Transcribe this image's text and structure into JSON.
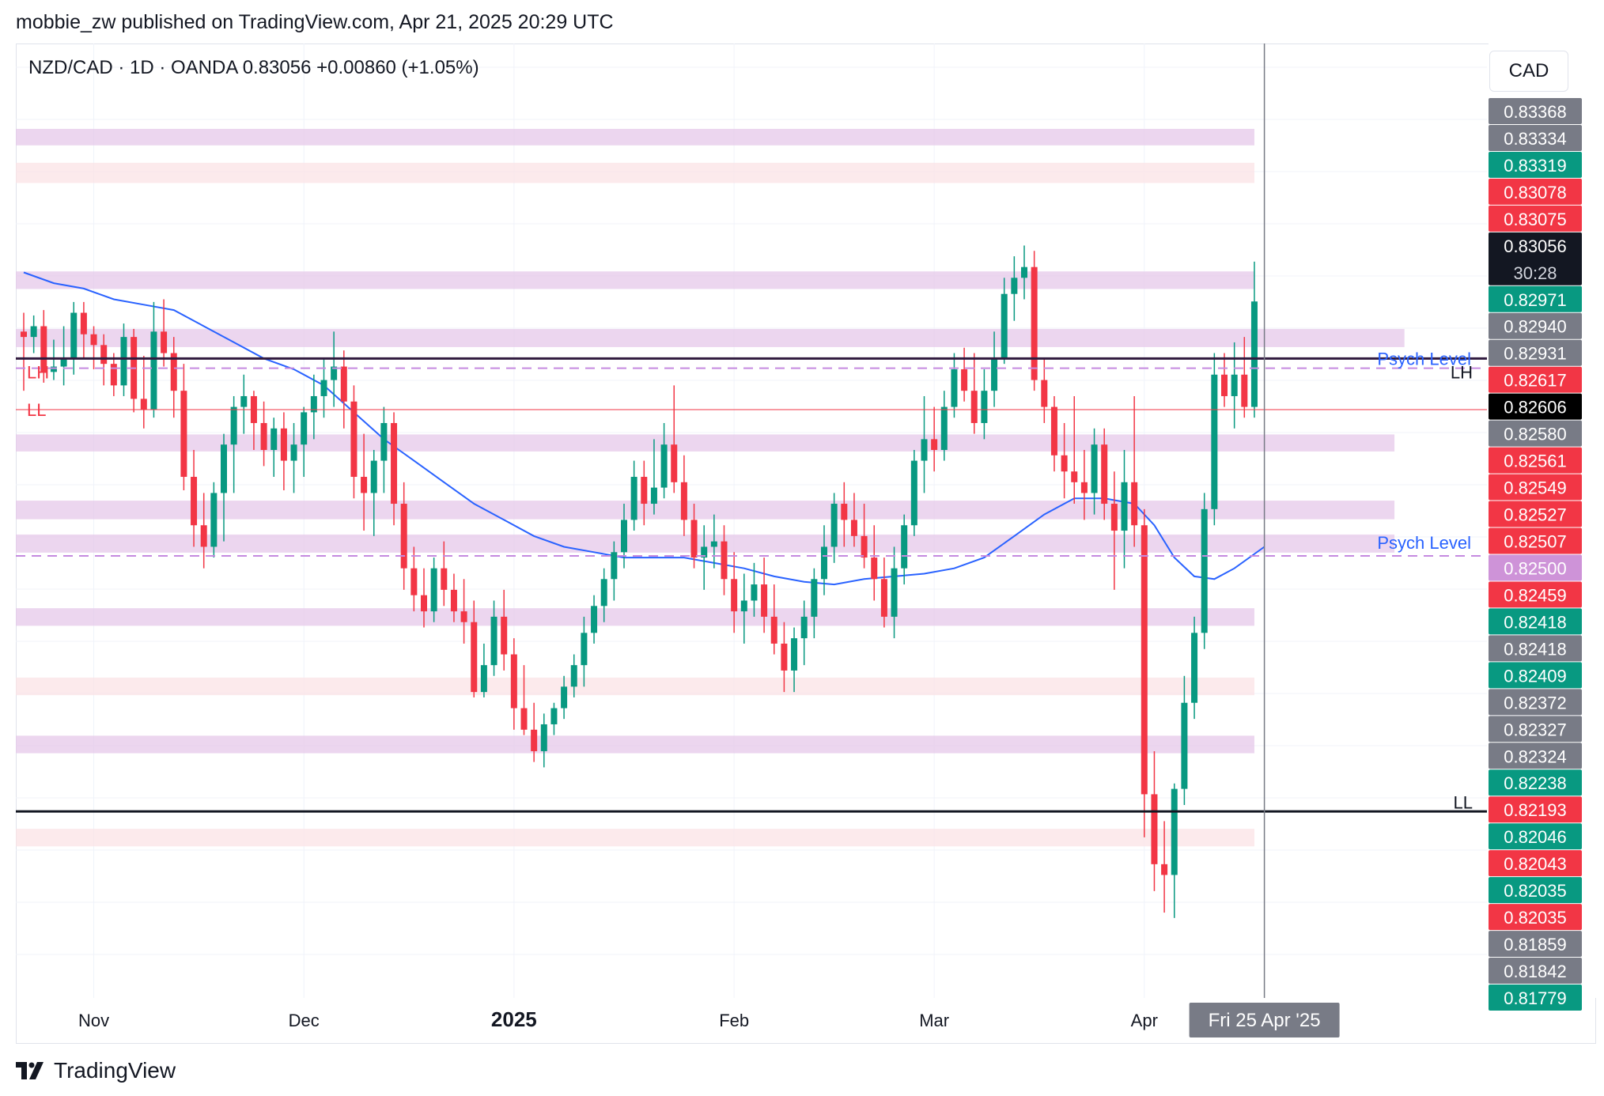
{
  "header": {
    "published_by": "mobbie_zw published on TradingView.com, Apr 21, 2025 20:29 UTC"
  },
  "symbol_line": "NZD/CAD · 1D · OANDA  0.83056  +0.00860 (+1.05%)",
  "currency": "CAD",
  "footer": {
    "brand": "TradingView"
  },
  "colors": {
    "up": "#089981",
    "down": "#f23645",
    "ma": "#2962ff",
    "zone_purple": "#e6c8ea",
    "zone_pink": "#fbe3e6",
    "psych": "#c58ae0",
    "label_blue": "#2962ff"
  },
  "chart_data": {
    "type": "candlestick",
    "title": "NZD/CAD · 1D · OANDA",
    "ylim": [
      0.81779,
      0.83415
    ],
    "x_ticks": [
      {
        "label": "Nov",
        "index": 7
      },
      {
        "label": "Dec",
        "index": 28
      },
      {
        "label": "2025",
        "index": 49
      },
      {
        "label": "Feb",
        "index": 71
      },
      {
        "label": "Mar",
        "index": 91
      },
      {
        "label": "Apr",
        "index": 112
      }
    ],
    "crosshair_date": "Fri 25 Apr '25",
    "countdown": "30:28",
    "last_price": "0.83056",
    "price_labels": [
      {
        "value": "0.83368",
        "kind": "gray"
      },
      {
        "value": "0.83334",
        "kind": "gray"
      },
      {
        "value": "0.83319",
        "kind": "up"
      },
      {
        "value": "0.83078",
        "kind": "down"
      },
      {
        "value": "0.83075",
        "kind": "down"
      },
      {
        "value": "0.83056",
        "kind": "last"
      },
      {
        "value": "0.82971",
        "kind": "up"
      },
      {
        "value": "0.82940",
        "kind": "gray"
      },
      {
        "value": "0.82931",
        "kind": "gray"
      },
      {
        "value": "0.82617",
        "kind": "down"
      },
      {
        "value": "0.82606",
        "kind": "black"
      },
      {
        "value": "0.82580",
        "kind": "gray"
      },
      {
        "value": "0.82561",
        "kind": "down"
      },
      {
        "value": "0.82549",
        "kind": "down"
      },
      {
        "value": "0.82527",
        "kind": "down"
      },
      {
        "value": "0.82507",
        "kind": "down"
      },
      {
        "value": "0.82500",
        "kind": "purple"
      },
      {
        "value": "0.82459",
        "kind": "down"
      },
      {
        "value": "0.82418",
        "kind": "up"
      },
      {
        "value": "0.82418",
        "kind": "gray"
      },
      {
        "value": "0.82409",
        "kind": "up"
      },
      {
        "value": "0.82372",
        "kind": "gray"
      },
      {
        "value": "0.82327",
        "kind": "gray"
      },
      {
        "value": "0.82324",
        "kind": "gray"
      },
      {
        "value": "0.82238",
        "kind": "up"
      },
      {
        "value": "0.82193",
        "kind": "down"
      },
      {
        "value": "0.82046",
        "kind": "up"
      },
      {
        "value": "0.82043",
        "kind": "down"
      },
      {
        "value": "0.82035",
        "kind": "up"
      },
      {
        "value": "0.82035",
        "kind": "down"
      },
      {
        "value": "0.81859",
        "kind": "gray"
      },
      {
        "value": "0.81842",
        "kind": "gray"
      },
      {
        "value": "0.81779",
        "kind": "up"
      }
    ],
    "zones": [
      {
        "low": 0.83355,
        "high": 0.83368,
        "color": "purple",
        "end_index": 123
      },
      {
        "low": 0.83285,
        "high": 0.83305,
        "color": "pink",
        "end_index": 123
      },
      {
        "low": 0.83088,
        "high": 0.83103,
        "color": "purple",
        "end_index": 123
      },
      {
        "low": 0.8298,
        "high": 0.82996,
        "color": "purple",
        "end_index": 138
      },
      {
        "low": 0.82786,
        "high": 0.828,
        "color": "purple",
        "end_index": 137
      },
      {
        "low": 0.8266,
        "high": 0.82677,
        "color": "purple",
        "end_index": 137
      },
      {
        "low": 0.82598,
        "high": 0.82614,
        "color": "purple",
        "end_index": 137
      },
      {
        "low": 0.82462,
        "high": 0.82477,
        "color": "purple",
        "end_index": 123
      },
      {
        "low": 0.82333,
        "high": 0.82348,
        "color": "pink",
        "end_index": 123
      },
      {
        "low": 0.82225,
        "high": 0.8224,
        "color": "purple",
        "end_index": 123
      },
      {
        "low": 0.82052,
        "high": 0.82067,
        "color": "pink",
        "end_index": 123
      }
    ],
    "horizontal_lines": [
      {
        "name": "resistance",
        "value": 0.8295,
        "color": "#311b3f",
        "width": 3,
        "style": "solid"
      },
      {
        "name": "psych-upper",
        "value": 0.82932,
        "color": "#c58ae0",
        "width": 2,
        "style": "dashed"
      },
      {
        "name": "red-level",
        "value": 0.82855,
        "color": "#f23645",
        "width": 1,
        "style": "solid"
      },
      {
        "name": "psych-lower",
        "value": 0.82583,
        "color": "#c58ae0",
        "width": 2,
        "style": "dashed"
      },
      {
        "name": "ll-line",
        "value": 0.82108,
        "color": "#131722",
        "width": 3,
        "style": "solid"
      }
    ],
    "annotations": [
      {
        "text": "Psych Level",
        "value": 0.8295,
        "color": "#2962ff"
      },
      {
        "text": "Psych Level",
        "value": 0.82608,
        "color": "#2962ff"
      },
      {
        "text": "LH",
        "value": 0.82925,
        "color": "#131722"
      },
      {
        "text": "LL",
        "value": 0.82125,
        "color": "#131722"
      },
      {
        "text": "LH",
        "value": 0.82925,
        "color": "#f23645",
        "side": "left"
      },
      {
        "text": "LL",
        "value": 0.82855,
        "color": "#f23645",
        "side": "left"
      }
    ],
    "crosshair_index": 124,
    "candles": [
      [
        0.83,
        0.83035,
        0.8289,
        0.8299
      ],
      [
        0.8299,
        0.8303,
        0.8296,
        0.8301
      ],
      [
        0.8301,
        0.8304,
        0.82905,
        0.82925
      ],
      [
        0.82925,
        0.82985,
        0.8291,
        0.82935
      ],
      [
        0.82935,
        0.8301,
        0.829,
        0.8295
      ],
      [
        0.8295,
        0.83055,
        0.8292,
        0.83035
      ],
      [
        0.83035,
        0.83055,
        0.8295,
        0.82995
      ],
      [
        0.82995,
        0.8301,
        0.8293,
        0.82975
      ],
      [
        0.82975,
        0.82995,
        0.829,
        0.8294
      ],
      [
        0.8294,
        0.8296,
        0.8288,
        0.829
      ],
      [
        0.829,
        0.83015,
        0.8288,
        0.8299
      ],
      [
        0.8299,
        0.83005,
        0.8285,
        0.82875
      ],
      [
        0.82875,
        0.82955,
        0.8282,
        0.82855
      ],
      [
        0.82855,
        0.83055,
        0.8284,
        0.83
      ],
      [
        0.83,
        0.8306,
        0.82935,
        0.8296
      ],
      [
        0.8296,
        0.8299,
        0.8284,
        0.8289
      ],
      [
        0.8289,
        0.8294,
        0.82705,
        0.8273
      ],
      [
        0.8273,
        0.8278,
        0.826,
        0.8264
      ],
      [
        0.8264,
        0.827,
        0.8256,
        0.826
      ],
      [
        0.826,
        0.8272,
        0.8258,
        0.827
      ],
      [
        0.827,
        0.8281,
        0.8261,
        0.8279
      ],
      [
        0.8279,
        0.8288,
        0.827,
        0.8286
      ],
      [
        0.8286,
        0.8292,
        0.8281,
        0.8288
      ],
      [
        0.8288,
        0.8289,
        0.8278,
        0.8283
      ],
      [
        0.8283,
        0.8287,
        0.8275,
        0.8278
      ],
      [
        0.8278,
        0.8284,
        0.8273,
        0.8282
      ],
      [
        0.8282,
        0.8285,
        0.82705,
        0.8276
      ],
      [
        0.8276,
        0.8283,
        0.827,
        0.8279
      ],
      [
        0.8279,
        0.8286,
        0.8273,
        0.8285
      ],
      [
        0.8285,
        0.8292,
        0.828,
        0.8288
      ],
      [
        0.8288,
        0.8295,
        0.8284,
        0.8291
      ],
      [
        0.8291,
        0.83,
        0.8286,
        0.82935
      ],
      [
        0.82935,
        0.82965,
        0.8282,
        0.8287
      ],
      [
        0.8287,
        0.829,
        0.8269,
        0.8273
      ],
      [
        0.8273,
        0.8281,
        0.8263,
        0.827
      ],
      [
        0.827,
        0.8278,
        0.8262,
        0.8276
      ],
      [
        0.8276,
        0.8286,
        0.827,
        0.8283
      ],
      [
        0.8283,
        0.8285,
        0.8264,
        0.8268
      ],
      [
        0.8268,
        0.8272,
        0.8252,
        0.8256
      ],
      [
        0.8256,
        0.826,
        0.8248,
        0.8251
      ],
      [
        0.8251,
        0.8256,
        0.8245,
        0.8248
      ],
      [
        0.8248,
        0.8258,
        0.8246,
        0.8256
      ],
      [
        0.8256,
        0.8261,
        0.8249,
        0.8252
      ],
      [
        0.8252,
        0.8255,
        0.8246,
        0.8248
      ],
      [
        0.8248,
        0.8254,
        0.8242,
        0.8246
      ],
      [
        0.8246,
        0.825,
        0.8232,
        0.8233
      ],
      [
        0.8233,
        0.8242,
        0.8232,
        0.8238
      ],
      [
        0.8238,
        0.825,
        0.8236,
        0.8247
      ],
      [
        0.8247,
        0.8252,
        0.8237,
        0.824
      ],
      [
        0.824,
        0.8243,
        0.8226,
        0.823
      ],
      [
        0.823,
        0.8238,
        0.8225,
        0.8226
      ],
      [
        0.8226,
        0.8231,
        0.822,
        0.8222
      ],
      [
        0.8222,
        0.8229,
        0.8219,
        0.8227
      ],
      [
        0.8227,
        0.8231,
        0.8225,
        0.823
      ],
      [
        0.823,
        0.8236,
        0.8228,
        0.8234
      ],
      [
        0.8234,
        0.824,
        0.8232,
        0.8238
      ],
      [
        0.8238,
        0.8247,
        0.8234,
        0.8244
      ],
      [
        0.8244,
        0.8251,
        0.8242,
        0.8249
      ],
      [
        0.8249,
        0.8256,
        0.8246,
        0.8254
      ],
      [
        0.8254,
        0.8261,
        0.825,
        0.8259
      ],
      [
        0.8259,
        0.8268,
        0.8256,
        0.8265
      ],
      [
        0.8265,
        0.8276,
        0.8263,
        0.8273
      ],
      [
        0.8273,
        0.8276,
        0.8264,
        0.8268
      ],
      [
        0.8268,
        0.828,
        0.8266,
        0.8271
      ],
      [
        0.8271,
        0.8283,
        0.8269,
        0.8279
      ],
      [
        0.8279,
        0.829,
        0.827,
        0.8272
      ],
      [
        0.8272,
        0.8277,
        0.8262,
        0.8265
      ],
      [
        0.8265,
        0.8268,
        0.8256,
        0.8258
      ],
      [
        0.8258,
        0.8264,
        0.8252,
        0.826
      ],
      [
        0.826,
        0.8266,
        0.8256,
        0.8261
      ],
      [
        0.8261,
        0.8264,
        0.8251,
        0.8254
      ],
      [
        0.8254,
        0.8259,
        0.8244,
        0.8248
      ],
      [
        0.8248,
        0.8255,
        0.8242,
        0.825
      ],
      [
        0.825,
        0.8257,
        0.8247,
        0.8253
      ],
      [
        0.8253,
        0.8258,
        0.8244,
        0.8247
      ],
      [
        0.8247,
        0.8253,
        0.824,
        0.8242
      ],
      [
        0.8242,
        0.8246,
        0.8233,
        0.8237
      ],
      [
        0.8237,
        0.8245,
        0.8233,
        0.8243
      ],
      [
        0.8243,
        0.825,
        0.8238,
        0.8247
      ],
      [
        0.8247,
        0.8256,
        0.8243,
        0.8254
      ],
      [
        0.8254,
        0.8264,
        0.8251,
        0.826
      ],
      [
        0.826,
        0.827,
        0.8257,
        0.8268
      ],
      [
        0.8268,
        0.8272,
        0.826,
        0.8265
      ],
      [
        0.8265,
        0.827,
        0.826,
        0.8262
      ],
      [
        0.8262,
        0.8268,
        0.8256,
        0.8258
      ],
      [
        0.8258,
        0.8264,
        0.825,
        0.8254
      ],
      [
        0.8254,
        0.8258,
        0.8245,
        0.8247
      ],
      [
        0.8247,
        0.826,
        0.8243,
        0.8256
      ],
      [
        0.8256,
        0.8266,
        0.8253,
        0.8264
      ],
      [
        0.8264,
        0.8278,
        0.8262,
        0.8276
      ],
      [
        0.8276,
        0.8288,
        0.827,
        0.828
      ],
      [
        0.828,
        0.8286,
        0.8274,
        0.8278
      ],
      [
        0.8278,
        0.8289,
        0.8276,
        0.8286
      ],
      [
        0.8286,
        0.8296,
        0.8284,
        0.8293
      ],
      [
        0.8293,
        0.8297,
        0.8287,
        0.8289
      ],
      [
        0.8289,
        0.8296,
        0.8281,
        0.8283
      ],
      [
        0.8283,
        0.8293,
        0.828,
        0.8289
      ],
      [
        0.8289,
        0.83,
        0.8286,
        0.8295
      ],
      [
        0.8295,
        0.831,
        0.8294,
        0.8307
      ],
      [
        0.8307,
        0.8314,
        0.8302,
        0.831
      ],
      [
        0.831,
        0.8316,
        0.8306,
        0.8312
      ],
      [
        0.8312,
        0.8315,
        0.8289,
        0.8291
      ],
      [
        0.8291,
        0.8295,
        0.8283,
        0.8286
      ],
      [
        0.8286,
        0.8288,
        0.8274,
        0.8277
      ],
      [
        0.8277,
        0.8283,
        0.8269,
        0.8274
      ],
      [
        0.8274,
        0.8288,
        0.8268,
        0.8272
      ],
      [
        0.8272,
        0.8278,
        0.8265,
        0.827
      ],
      [
        0.827,
        0.8282,
        0.8266,
        0.8279
      ],
      [
        0.8279,
        0.8282,
        0.8265,
        0.8268
      ],
      [
        0.8268,
        0.8274,
        0.8252,
        0.8263
      ],
      [
        0.8263,
        0.8278,
        0.8256,
        0.8272
      ],
      [
        0.8272,
        0.8288,
        0.826,
        0.8264
      ],
      [
        0.8264,
        0.8267,
        0.8206,
        0.8214
      ],
      [
        0.8214,
        0.8222,
        0.8196,
        0.8201
      ],
      [
        0.8201,
        0.8209,
        0.8192,
        0.8199
      ],
      [
        0.8199,
        0.8216,
        0.8191,
        0.8215
      ],
      [
        0.8215,
        0.8236,
        0.8212,
        0.8231
      ],
      [
        0.8231,
        0.8247,
        0.8228,
        0.8244
      ],
      [
        0.8244,
        0.827,
        0.8241,
        0.8267
      ],
      [
        0.8267,
        0.8296,
        0.8264,
        0.8292
      ],
      [
        0.8292,
        0.8296,
        0.8286,
        0.8288
      ],
      [
        0.8288,
        0.8298,
        0.8282,
        0.8292
      ],
      [
        0.8292,
        0.8299,
        0.8284,
        0.8286
      ],
      [
        0.8286,
        0.8313,
        0.8284,
        0.83056
      ]
    ],
    "moving_average": [
      [
        0,
        0.8311
      ],
      [
        3,
        0.8309
      ],
      [
        6,
        0.8308
      ],
      [
        9,
        0.8306
      ],
      [
        12,
        0.8305
      ],
      [
        15,
        0.8304
      ],
      [
        18,
        0.8301
      ],
      [
        21,
        0.8298
      ],
      [
        24,
        0.8295
      ],
      [
        27,
        0.8293
      ],
      [
        30,
        0.829
      ],
      [
        33,
        0.8285
      ],
      [
        36,
        0.828
      ],
      [
        39,
        0.8276
      ],
      [
        42,
        0.8272
      ],
      [
        45,
        0.8268
      ],
      [
        48,
        0.8265
      ],
      [
        51,
        0.8262
      ],
      [
        54,
        0.826
      ],
      [
        57,
        0.8259
      ],
      [
        60,
        0.8258
      ],
      [
        63,
        0.8258
      ],
      [
        66,
        0.8258
      ],
      [
        69,
        0.8257
      ],
      [
        72,
        0.8256
      ],
      [
        75,
        0.82545
      ],
      [
        78,
        0.82535
      ],
      [
        81,
        0.8253
      ],
      [
        84,
        0.8254
      ],
      [
        87,
        0.82545
      ],
      [
        90,
        0.8255
      ],
      [
        93,
        0.8256
      ],
      [
        96,
        0.8258
      ],
      [
        99,
        0.8262
      ],
      [
        102,
        0.8266
      ],
      [
        105,
        0.8269
      ],
      [
        108,
        0.8269
      ],
      [
        111,
        0.8268
      ],
      [
        113,
        0.8264
      ],
      [
        115,
        0.8258
      ],
      [
        117,
        0.82545
      ],
      [
        119,
        0.8254
      ],
      [
        121,
        0.8256
      ],
      [
        124,
        0.826
      ]
    ]
  }
}
